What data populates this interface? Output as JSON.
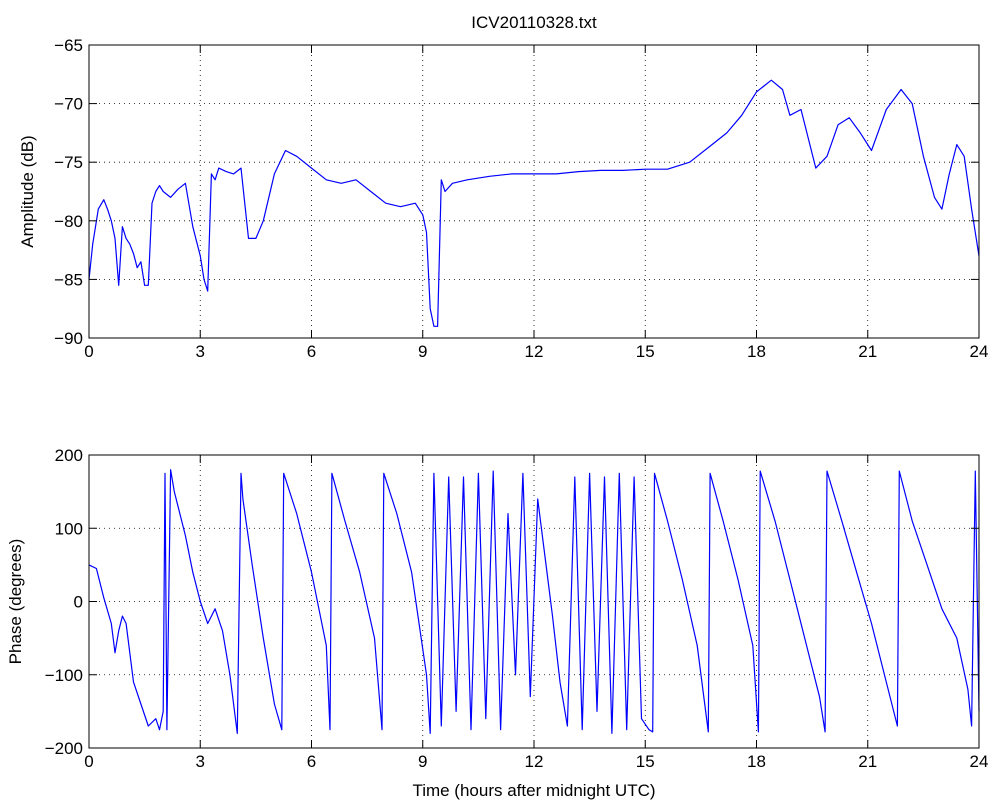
{
  "figure_title": "ICV20110328.txt",
  "chart_data": [
    {
      "type": "line",
      "title": "ICV20110328.txt",
      "xlabel": "",
      "ylabel": "Amplitude (dB)",
      "xlim": [
        0,
        24
      ],
      "ylim": [
        -90,
        -65
      ],
      "xticks": [
        0,
        3,
        6,
        9,
        12,
        15,
        18,
        21,
        24
      ],
      "yticks": [
        -90,
        -85,
        -80,
        -75,
        -70,
        -65
      ],
      "xtick_labels": [
        "0",
        "3",
        "6",
        "9",
        "12",
        "15",
        "18",
        "21",
        "24"
      ],
      "ytick_labels": [
        "−90",
        "−85",
        "−80",
        "−75",
        "−70",
        "−65"
      ],
      "grid": true,
      "series": [
        {
          "color": "#0000ff",
          "x": [
            0.0,
            0.1,
            0.25,
            0.4,
            0.5,
            0.6,
            0.7,
            0.8,
            0.9,
            1.0,
            1.1,
            1.2,
            1.3,
            1.4,
            1.5,
            1.6,
            1.7,
            1.8,
            1.9,
            2.0,
            2.2,
            2.4,
            2.6,
            2.8,
            3.0,
            3.1,
            3.2,
            3.3,
            3.4,
            3.5,
            3.7,
            3.9,
            4.1,
            4.3,
            4.5,
            4.7,
            5.0,
            5.3,
            5.6,
            6.0,
            6.4,
            6.8,
            7.2,
            7.6,
            8.0,
            8.4,
            8.8,
            9.0,
            9.1,
            9.2,
            9.3,
            9.4,
            9.5,
            9.6,
            9.8,
            10.2,
            10.8,
            11.4,
            12.0,
            12.6,
            13.2,
            13.8,
            14.4,
            15.0,
            15.6,
            16.2,
            16.8,
            17.2,
            17.6,
            18.0,
            18.4,
            18.7,
            18.9,
            19.2,
            19.6,
            19.9,
            20.2,
            20.5,
            20.8,
            21.1,
            21.5,
            21.9,
            22.2,
            22.5,
            22.8,
            23.0,
            23.2,
            23.4,
            23.6,
            23.8,
            24.0
          ],
          "y": [
            -85,
            -82,
            -79,
            -78.2,
            -79,
            -80,
            -81.5,
            -85.5,
            -80.5,
            -81.5,
            -82,
            -82.8,
            -84,
            -83.5,
            -85.5,
            -85.5,
            -78.5,
            -77.5,
            -77,
            -77.5,
            -78,
            -77.3,
            -76.8,
            -80.5,
            -83,
            -85,
            -86,
            -76,
            -76.5,
            -75.5,
            -75.8,
            -76,
            -75.5,
            -81.5,
            -81.5,
            -80,
            -76,
            -74,
            -74.5,
            -75.5,
            -76.5,
            -76.8,
            -76.5,
            -77.5,
            -78.5,
            -78.8,
            -78.5,
            -79.5,
            -81,
            -87.5,
            -89,
            -89,
            -76.5,
            -77.5,
            -76.8,
            -76.5,
            -76.2,
            -76,
            -76,
            -76,
            -75.8,
            -75.7,
            -75.7,
            -75.6,
            -75.6,
            -75,
            -73.5,
            -72.5,
            -71,
            -69,
            -68,
            -68.8,
            -71,
            -70.5,
            -75.5,
            -74.5,
            -71.8,
            -71.2,
            -72.5,
            -74,
            -70.5,
            -68.8,
            -70,
            -74.5,
            -78,
            -79,
            -76,
            -73.5,
            -74.5,
            -79,
            -83
          ]
        }
      ]
    },
    {
      "type": "line",
      "title": "",
      "xlabel": "Time (hours after midnight UTC)",
      "ylabel": "Phase (degrees)",
      "xlim": [
        0,
        24
      ],
      "ylim": [
        -200,
        200
      ],
      "xticks": [
        0,
        3,
        6,
        9,
        12,
        15,
        18,
        21,
        24
      ],
      "yticks": [
        -200,
        -100,
        0,
        100,
        200
      ],
      "xtick_labels": [
        "0",
        "3",
        "6",
        "9",
        "12",
        "15",
        "18",
        "21",
        "24"
      ],
      "ytick_labels": [
        "−200",
        "−100",
        "0",
        "100",
        "200"
      ],
      "grid": true,
      "series": [
        {
          "color": "#0000ff",
          "x": [
            0.0,
            0.2,
            0.4,
            0.6,
            0.7,
            0.8,
            0.9,
            1.0,
            1.1,
            1.2,
            1.4,
            1.6,
            1.8,
            1.9,
            2.0,
            2.05,
            2.1,
            2.2,
            2.3,
            2.4,
            2.6,
            2.8,
            3.0,
            3.2,
            3.4,
            3.6,
            3.8,
            4.0,
            4.1,
            4.15,
            4.4,
            4.7,
            5.0,
            5.2,
            5.25,
            5.6,
            6.0,
            6.4,
            6.5,
            6.55,
            6.9,
            7.3,
            7.7,
            7.9,
            7.95,
            8.3,
            8.7,
            9.1,
            9.2,
            9.3,
            9.5,
            9.7,
            9.9,
            10.1,
            10.3,
            10.5,
            10.7,
            10.9,
            11.1,
            11.3,
            11.5,
            11.7,
            11.9,
            12.1,
            12.3,
            12.5,
            12.7,
            12.9,
            13.1,
            13.3,
            13.5,
            13.7,
            13.9,
            14.1,
            14.3,
            14.5,
            14.7,
            14.9,
            15.1,
            15.2,
            15.25,
            15.6,
            16.0,
            16.4,
            16.7,
            16.75,
            17.1,
            17.5,
            17.9,
            18.05,
            18.1,
            18.5,
            18.9,
            19.3,
            19.7,
            19.85,
            19.9,
            20.3,
            20.7,
            21.1,
            21.5,
            21.8,
            21.85,
            22.2,
            22.6,
            23.0,
            23.4,
            23.7,
            23.8,
            23.9,
            24.0
          ],
          "y": [
            50,
            45,
            5,
            -30,
            -70,
            -40,
            -20,
            -30,
            -70,
            -110,
            -140,
            -170,
            -160,
            -175,
            -150,
            175,
            -175,
            180,
            150,
            130,
            90,
            40,
            0,
            -30,
            -10,
            -40,
            -100,
            -180,
            175,
            140,
            50,
            -50,
            -140,
            -175,
            175,
            120,
            40,
            -60,
            -175,
            175,
            110,
            40,
            -50,
            -175,
            175,
            120,
            40,
            -100,
            -180,
            175,
            -170,
            170,
            -150,
            170,
            -175,
            175,
            -160,
            178,
            -175,
            120,
            -100,
            175,
            -130,
            140,
            60,
            -20,
            -110,
            -170,
            170,
            -175,
            175,
            -150,
            170,
            -180,
            175,
            -175,
            170,
            -160,
            -175,
            -178,
            175,
            110,
            30,
            -60,
            -178,
            175,
            110,
            30,
            -60,
            -178,
            178,
            110,
            30,
            -50,
            -130,
            -178,
            178,
            110,
            40,
            -30,
            -110,
            -170,
            178,
            110,
            50,
            -10,
            -50,
            -120,
            -170,
            178,
            -150
          ]
        }
      ]
    }
  ]
}
